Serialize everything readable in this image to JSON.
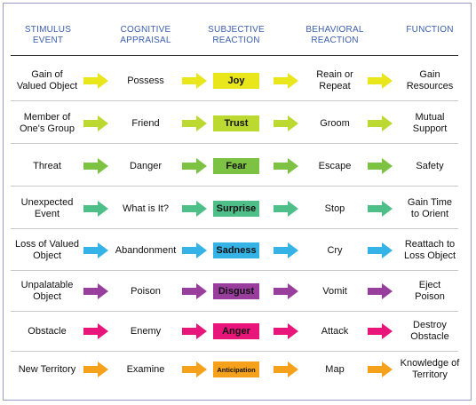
{
  "headers": [
    "STIMULUS\nEVENT",
    "COGNITIVE\nAPPRAISAL",
    "SUBJECTIVE\nREACTION",
    "BEHAVIORAL\nREACTION",
    "FUNCTION"
  ],
  "rows": [
    {
      "stimulus": "Gain of\nValued Object",
      "appraisal": "Possess",
      "reaction": "Joy",
      "behavior": "Reain or\nRepeat",
      "function": "Gain\nResources",
      "color": "#e9e61c"
    },
    {
      "stimulus": "Member of\nOne's Group",
      "appraisal": "Friend",
      "reaction": "Trust",
      "behavior": "Groom",
      "function": "Mutual\nSupport",
      "color": "#bcd931"
    },
    {
      "stimulus": "Threat",
      "appraisal": "Danger",
      "reaction": "Fear",
      "behavior": "Escape",
      "function": "Safety",
      "color": "#7dc242"
    },
    {
      "stimulus": "Unexpected\nEvent",
      "appraisal": "What is It?",
      "reaction": "Surprise",
      "behavior": "Stop",
      "function": "Gain Time\nto Orient",
      "color": "#4fbf8a"
    },
    {
      "stimulus": "Loss of Valued\nObject",
      "appraisal": "Abandonment",
      "reaction": "Sadness",
      "behavior": "Cry",
      "function": "Reattach to\nLoss Object",
      "color": "#35b3e6"
    },
    {
      "stimulus": "Unpalatable\nObject",
      "appraisal": "Poison",
      "reaction": "Disgust",
      "behavior": "Vomit",
      "function": "Eject\nPoison",
      "color": "#9a3e9e"
    },
    {
      "stimulus": "Obstacle",
      "appraisal": "Enemy",
      "reaction": "Anger",
      "behavior": "Attack",
      "function": "Destroy\nObstacle",
      "color": "#e8157a"
    },
    {
      "stimulus": "New Territory",
      "appraisal": "Examine",
      "reaction": "Anticipation",
      "behavior": "Map",
      "function": "Knowledge of\nTerritory",
      "color": "#f5a11c"
    }
  ]
}
